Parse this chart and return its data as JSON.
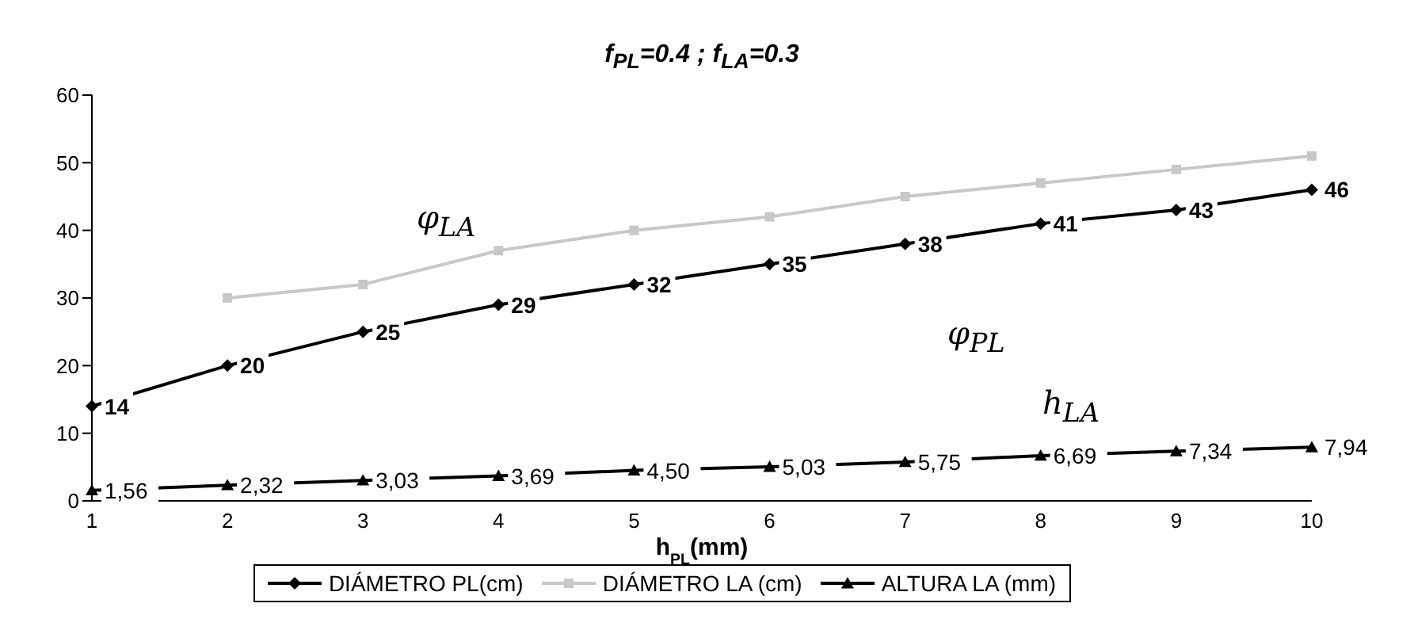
{
  "chart_data": {
    "type": "line",
    "title": "f$_{PL}$=0.4 ; f$_{LA}$=0.3",
    "xlabel": "h$_{PL}$(mm)",
    "categories": [
      "1",
      "2",
      "3",
      "4",
      "5",
      "6",
      "7",
      "8",
      "9",
      "10"
    ],
    "series": [
      {
        "name": "DIÁMETRO PL(cm)",
        "color": "#000000",
        "marker": "diamond",
        "values": [
          14,
          20,
          25,
          29,
          32,
          35,
          38,
          41,
          43,
          46
        ],
        "value_labels": [
          "14",
          "20",
          "25",
          "29",
          "32",
          "35",
          "38",
          "41",
          "43",
          "46"
        ]
      },
      {
        "name": "DIÁMETRO LA (cm)",
        "color": "#c8c8c8",
        "marker": "square",
        "values": [
          null,
          30,
          32,
          37,
          40,
          42,
          45,
          47,
          49,
          51
        ]
      },
      {
        "name": "ALTURA  LA (mm)",
        "color": "#000000",
        "marker": "triangle",
        "values": [
          1.56,
          2.32,
          3.03,
          3.69,
          4.5,
          5.03,
          5.75,
          6.69,
          7.34,
          7.94
        ],
        "value_labels": [
          "1,56",
          "2,32",
          "3,03",
          "3,69",
          "4,50",
          "5,03",
          "5,75",
          "6,69",
          "7,34",
          "7,94"
        ]
      }
    ],
    "ylim": [
      0,
      60
    ],
    "yticks": [
      0,
      10,
      20,
      30,
      40,
      50,
      60
    ],
    "grid": false,
    "legend": "bottom",
    "annotations": [
      "φ$_{LA}$",
      "φ$_{PL}$",
      "h$_{LA}$"
    ]
  }
}
